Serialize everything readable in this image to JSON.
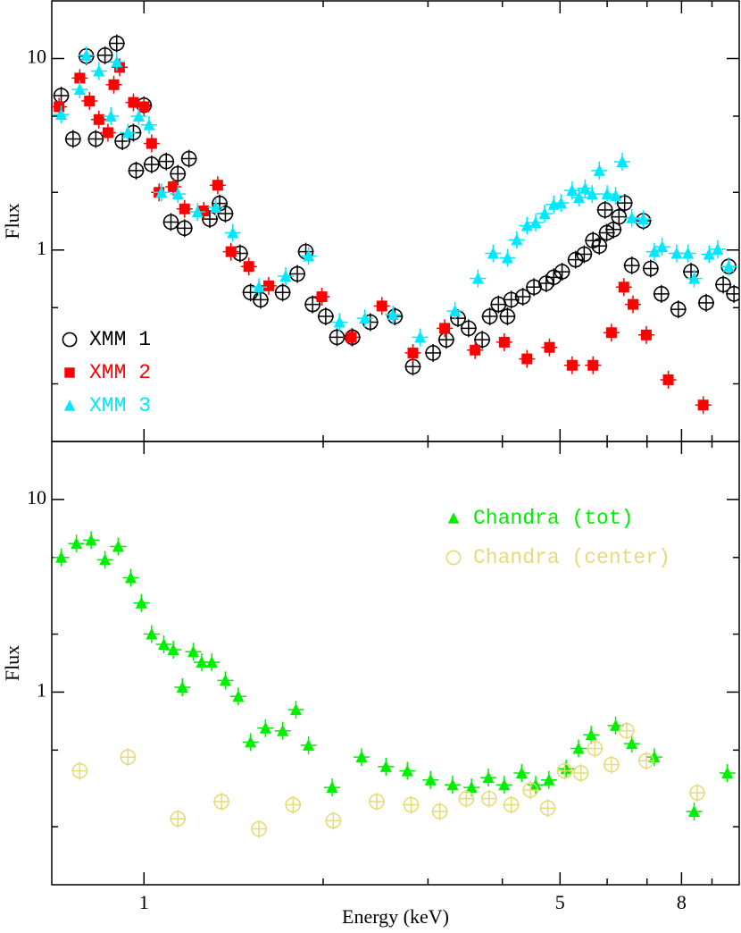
{
  "chart_data": [
    {
      "type": "scatter",
      "y_label": "Flux",
      "log_x": true,
      "log_y": true,
      "xlim": [
        0.7,
        10
      ],
      "ylim": [
        0.1,
        20
      ],
      "yticks": [
        1,
        10
      ],
      "yminorticks": [
        0.2,
        0.5,
        2,
        5
      ],
      "legend": "lower left",
      "series": [
        {
          "name": "XMM 1",
          "color": "#000000",
          "marker": "open-circle",
          "x": [
            0.726,
            0.76,
            0.8,
            0.83,
            0.86,
            0.9,
            0.92,
            0.96,
            0.97,
            1.0,
            1.03,
            1.09,
            1.11,
            1.14,
            1.17,
            1.19,
            1.29,
            1.34,
            1.37,
            1.45,
            1.51,
            1.57,
            1.71,
            1.81,
            1.87,
            1.92,
            2.02,
            2.11,
            2.24,
            2.4,
            2.64,
            2.83,
            3.06,
            3.22,
            3.37,
            3.51,
            3.7,
            3.81,
            3.94,
            4.08,
            4.14,
            4.33,
            4.52,
            4.74,
            4.88,
            5.04,
            5.31,
            5.49,
            5.68,
            5.82,
            5.95,
            5.99,
            6.15,
            6.28,
            6.42,
            6.6,
            6.9,
            7.1,
            7.4,
            7.9,
            8.3,
            8.8,
            9.4,
            9.6,
            9.8
          ],
          "values": [
            6.4,
            3.8,
            10.3,
            3.8,
            10.4,
            12,
            3.7,
            4.1,
            2.6,
            5.7,
            2.8,
            2.9,
            1.4,
            2.5,
            1.3,
            3.0,
            1.45,
            1.75,
            1.55,
            0.96,
            0.6,
            0.55,
            0.6,
            0.75,
            0.98,
            0.52,
            0.45,
            0.35,
            0.35,
            0.42,
            0.45,
            0.246,
            0.29,
            0.34,
            0.44,
            0.39,
            0.34,
            0.45,
            0.52,
            0.45,
            0.55,
            0.57,
            0.64,
            0.67,
            0.72,
            0.77,
            0.89,
            0.95,
            1.12,
            1.05,
            1.62,
            1.23,
            1.28,
            1.49,
            1.76,
            0.83,
            1.42,
            0.8,
            0.59,
            0.49,
            0.77,
            0.53,
            0.66,
            0.82,
            0.59
          ]
        },
        {
          "name": "XMM 2",
          "color": "#ff0000",
          "marker": "square",
          "x": [
            0.72,
            0.78,
            0.81,
            0.84,
            0.87,
            0.89,
            0.91,
            0.96,
            1.0,
            1.03,
            1.06,
            1.12,
            1.17,
            1.26,
            1.33,
            1.4,
            1.5,
            1.62,
            1.99,
            2.23,
            2.51,
            2.83,
            3.2,
            3.6,
            4.03,
            4.4,
            4.8,
            5.24,
            5.68,
            6.1,
            6.4,
            6.63,
            6.98,
            7.6,
            8.7
          ],
          "values": [
            5.6,
            7.9,
            6.0,
            4.8,
            4.1,
            7.3,
            9.0,
            5.9,
            5.6,
            3.6,
            2.0,
            2.14,
            1.64,
            1.6,
            2.18,
            0.98,
            0.82,
            0.65,
            0.57,
            0.35,
            0.51,
            0.29,
            0.39,
            0.3,
            0.33,
            0.27,
            0.31,
            0.25,
            0.25,
            0.37,
            0.64,
            0.52,
            0.36,
            0.21,
            0.155
          ]
        },
        {
          "name": "XMM 3",
          "color": "#00e8ff",
          "marker": "triangle",
          "x": [
            0.726,
            0.78,
            0.8,
            0.84,
            0.88,
            0.9,
            0.94,
            0.98,
            1.02,
            1.07,
            1.14,
            1.23,
            1.32,
            1.41,
            1.56,
            1.73,
            1.89,
            2.13,
            2.35,
            2.62,
            2.91,
            3.33,
            3.64,
            3.86,
            4.08,
            4.23,
            4.4,
            4.55,
            4.71,
            4.88,
            5.02,
            5.24,
            5.38,
            5.51,
            5.66,
            5.82,
            6.0,
            6.2,
            6.36,
            6.6,
            6.9,
            7.2,
            7.42,
            7.85,
            8.2,
            8.4,
            8.9,
            9.2,
            9.6
          ],
          "values": [
            5.1,
            6.9,
            10.4,
            8.6,
            5.0,
            9.6,
            4.1,
            5.0,
            4.5,
            2.0,
            1.96,
            1.58,
            1.67,
            1.23,
            0.64,
            0.73,
            0.93,
            0.42,
            0.44,
            0.46,
            0.35,
            0.48,
            0.71,
            0.96,
            0.91,
            1.13,
            1.34,
            1.39,
            1.55,
            1.73,
            1.76,
            2.05,
            1.88,
            2.1,
            1.96,
            2.6,
            1.96,
            1.92,
            2.89,
            1.47,
            1.45,
            0.98,
            1.04,
            0.96,
            0.96,
            0.71,
            0.95,
            1.01,
            0.82
          ]
        }
      ]
    },
    {
      "type": "scatter",
      "x_label": "Energy (keV)",
      "y_label": "Flux",
      "log_x": true,
      "log_y": true,
      "xlim": [
        0.7,
        10
      ],
      "ylim": [
        0.1,
        20
      ],
      "xticks": [
        1,
        5,
        8
      ],
      "xminorticks": [
        2,
        3,
        4,
        6,
        7,
        9
      ],
      "yticks": [
        1,
        10
      ],
      "yminorticks": [
        0.2,
        0.5,
        2,
        5
      ],
      "legend": "upper right",
      "series": [
        {
          "name": "Chandra (tot)",
          "color": "#00ee00",
          "marker": "triangle",
          "x": [
            0.726,
            0.77,
            0.815,
            0.86,
            0.905,
            0.95,
            0.99,
            1.03,
            1.08,
            1.12,
            1.16,
            1.21,
            1.25,
            1.3,
            1.37,
            1.44,
            1.51,
            1.6,
            1.71,
            1.8,
            1.89,
            2.07,
            2.32,
            2.55,
            2.77,
            3.03,
            3.3,
            3.55,
            3.79,
            4.03,
            4.31,
            4.55,
            4.79,
            5.12,
            5.37,
            5.64,
            6.2,
            6.6,
            7.2,
            8.4,
            9.55
          ],
          "values": [
            5.0,
            5.9,
            6.15,
            4.86,
            5.7,
            3.92,
            2.9,
            2.0,
            1.77,
            1.66,
            1.06,
            1.62,
            1.43,
            1.43,
            1.15,
            0.95,
            0.55,
            0.65,
            0.63,
            0.81,
            0.53,
            0.32,
            0.46,
            0.41,
            0.39,
            0.35,
            0.33,
            0.32,
            0.36,
            0.33,
            0.38,
            0.33,
            0.35,
            0.4,
            0.51,
            0.6,
            0.67,
            0.54,
            0.46,
            0.24,
            0.38
          ]
        },
        {
          "name": "Chandra (center)",
          "color": "#e4dc78",
          "marker": "open-circle",
          "x": [
            0.78,
            0.94,
            1.14,
            1.35,
            1.56,
            1.78,
            2.08,
            2.46,
            2.81,
            3.14,
            3.48,
            3.8,
            4.14,
            4.46,
            4.77,
            5.09,
            5.42,
            5.72,
            6.1,
            6.47,
            6.98,
            8.5
          ],
          "values": [
            0.39,
            0.46,
            0.22,
            0.27,
            0.195,
            0.26,
            0.215,
            0.27,
            0.26,
            0.24,
            0.28,
            0.28,
            0.26,
            0.31,
            0.25,
            0.39,
            0.38,
            0.51,
            0.42,
            0.63,
            0.44,
            0.3
          ]
        }
      ]
    }
  ]
}
